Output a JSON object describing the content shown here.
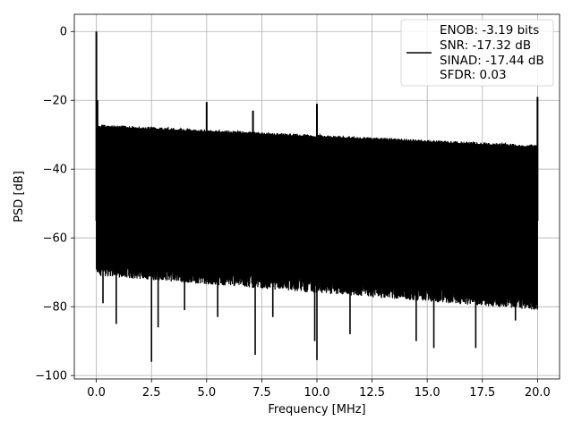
{
  "chart_data": {
    "type": "line",
    "xlabel": "Frequency [MHz]",
    "ylabel": "PSD [dB]",
    "xlim": [
      -1.0,
      21.0
    ],
    "ylim": [
      -101.0,
      5.0
    ],
    "xticks": [
      0.0,
      2.5,
      5.0,
      7.5,
      10.0,
      12.5,
      15.0,
      17.5,
      20.0
    ],
    "xtick_labels": [
      "0.0",
      "2.5",
      "5.0",
      "7.5",
      "10.0",
      "12.5",
      "15.0",
      "17.5",
      "20.0"
    ],
    "yticks": [
      0,
      -20,
      -40,
      -60,
      -80,
      -100
    ],
    "ytick_labels": [
      "0",
      "−20",
      "−40",
      "−60",
      "−80",
      "−100"
    ],
    "grid": true,
    "series_color": "#000000",
    "legend": {
      "placement": "top-right",
      "entries": [
        "ENOB: -3.19 bits",
        "SNR: -17.32 dB",
        "SINAD: -17.44 dB",
        "SFDR: 0.03"
      ]
    },
    "noise_floor": {
      "x_range": [
        0.0,
        20.0
      ],
      "upper_envelope_start": -27,
      "upper_envelope_end": -33,
      "lower_envelope_start": -68,
      "lower_envelope_end": -78
    },
    "spurs": [
      {
        "x": 0.0,
        "y": 0.0
      },
      {
        "x": 0.05,
        "y": -20
      },
      {
        "x": 5.0,
        "y": -20.5
      },
      {
        "x": 7.1,
        "y": -23
      },
      {
        "x": 10.0,
        "y": -21
      },
      {
        "x": 20.0,
        "y": -19
      }
    ],
    "dips": [
      {
        "x": 0.3,
        "y": -79
      },
      {
        "x": 0.9,
        "y": -85
      },
      {
        "x": 2.5,
        "y": -96
      },
      {
        "x": 2.8,
        "y": -86
      },
      {
        "x": 4.0,
        "y": -81
      },
      {
        "x": 5.5,
        "y": -83
      },
      {
        "x": 7.2,
        "y": -94
      },
      {
        "x": 8.0,
        "y": -83
      },
      {
        "x": 9.9,
        "y": -90
      },
      {
        "x": 10.0,
        "y": -95.5
      },
      {
        "x": 11.5,
        "y": -88
      },
      {
        "x": 14.5,
        "y": -90
      },
      {
        "x": 15.3,
        "y": -92
      },
      {
        "x": 17.2,
        "y": -92
      },
      {
        "x": 19.0,
        "y": -84
      }
    ]
  }
}
